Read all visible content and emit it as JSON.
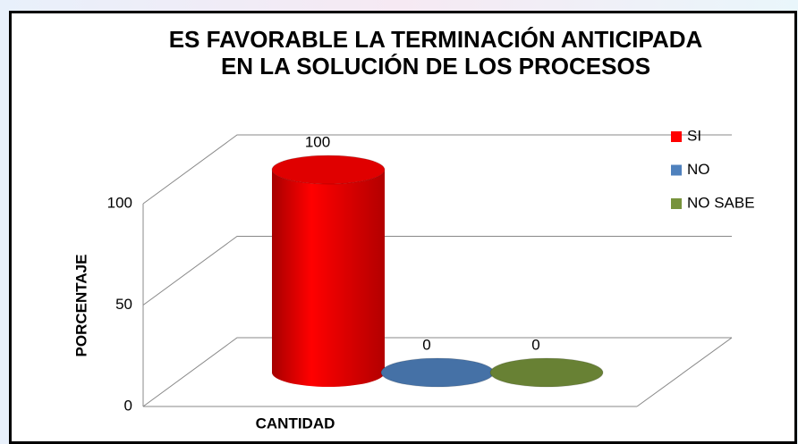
{
  "chart_data": {
    "type": "bar3d",
    "title": [
      "ES FAVORABLE LA TERMINACIÓN ANTICIPADA",
      "EN LA SOLUCIÓN DE LOS PROCESOS"
    ],
    "categories": [
      "CANTIDAD"
    ],
    "series": [
      {
        "name": "SI",
        "color": "#ff0000",
        "values": [
          100
        ]
      },
      {
        "name": "NO",
        "color": "#4f81bd",
        "values": [
          0
        ]
      },
      {
        "name": "NO SABE",
        "color": "#77933c",
        "values": [
          0
        ]
      }
    ],
    "ylabel": "PORCENTAJE",
    "ylim": [
      0,
      100
    ],
    "yticks": [
      0,
      50,
      100
    ],
    "grid": true,
    "legend": "right"
  }
}
